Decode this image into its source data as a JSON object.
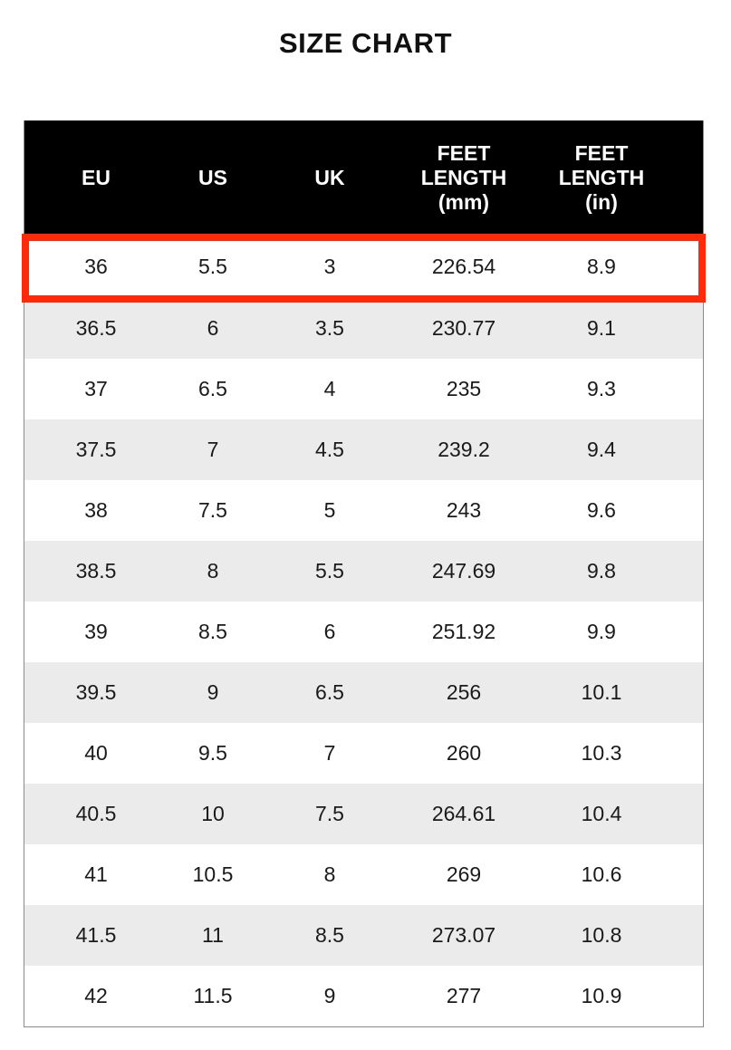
{
  "title": "SIZE CHART",
  "highlight_color": "#ff2a0a",
  "header_bg": "#000000",
  "columns": [
    "EU",
    "US",
    "UK",
    "FEET LENGTH (mm)",
    "FEET LENGTH (in)"
  ],
  "column_lines": [
    [
      "EU"
    ],
    [
      "US"
    ],
    [
      "UK"
    ],
    [
      "FEET",
      "LENGTH",
      "(mm)"
    ],
    [
      "FEET",
      "LENGTH",
      "(in)"
    ]
  ],
  "highlighted_row": 0,
  "rows": [
    [
      "36",
      "5.5",
      "3",
      "226.54",
      "8.9"
    ],
    [
      "36.5",
      "6",
      "3.5",
      "230.77",
      "9.1"
    ],
    [
      "37",
      "6.5",
      "4",
      "235",
      "9.3"
    ],
    [
      "37.5",
      "7",
      "4.5",
      "239.2",
      "9.4"
    ],
    [
      "38",
      "7.5",
      "5",
      "243",
      "9.6"
    ],
    [
      "38.5",
      "8",
      "5.5",
      "247.69",
      "9.8"
    ],
    [
      "39",
      "8.5",
      "6",
      "251.92",
      "9.9"
    ],
    [
      "39.5",
      "9",
      "6.5",
      "256",
      "10.1"
    ],
    [
      "40",
      "9.5",
      "7",
      "260",
      "10.3"
    ],
    [
      "40.5",
      "10",
      "7.5",
      "264.61",
      "10.4"
    ],
    [
      "41",
      "10.5",
      "8",
      "269",
      "10.6"
    ],
    [
      "41.5",
      "11",
      "8.5",
      "273.07",
      "10.8"
    ],
    [
      "42",
      "11.5",
      "9",
      "277",
      "10.9"
    ]
  ]
}
